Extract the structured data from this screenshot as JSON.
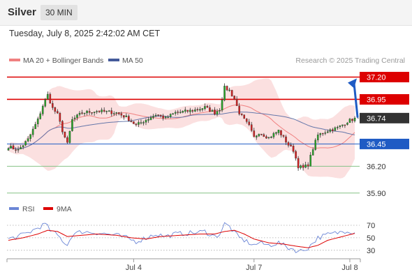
{
  "header": {
    "instrument": "Silver",
    "timeframe": "30 MIN"
  },
  "datetime": "Tuesday, July 8, 2025 2:42:02 AM CET",
  "legend": {
    "ma20": "MA 20 + Bollinger Bands",
    "ma50": "MA 50"
  },
  "copyright": "Research © 2025 Trading Central",
  "rsi_legend": {
    "rsi": "RSI",
    "ma": "9MA"
  },
  "colors": {
    "resistance": "#dd0000",
    "support": "#1f5bc4",
    "support_green": "#86c286",
    "candle_up": "#27a827",
    "candle_down": "#d62020",
    "bollinger_fill": "#fad6d6",
    "ma20": "#f08080",
    "ma50": "#6677aa",
    "arrow": "#1f5bc4",
    "price": "#333333"
  },
  "chart_data": {
    "type": "candlestick",
    "instrument": "Silver",
    "interval": "30 MIN",
    "ylim": [
      35.82,
      37.29
    ],
    "x_ticks": [
      "Jul 4",
      "Jul 7",
      "Jul 8"
    ],
    "levels": [
      {
        "value": 37.2,
        "label": "37.20",
        "kind": "resistance"
      },
      {
        "value": 36.95,
        "label": "36.95",
        "kind": "resistance"
      },
      {
        "value": 36.74,
        "label": "36.74",
        "kind": "last"
      },
      {
        "value": 36.45,
        "label": "36.45",
        "kind": "support"
      },
      {
        "value": 36.2,
        "label": "36.20",
        "kind": "support-target"
      },
      {
        "value": 35.9,
        "label": "35.90",
        "kind": "support-target"
      }
    ],
    "forecast_arrow": {
      "from": 36.74,
      "to": 37.2
    },
    "path_keys": [
      [
        0,
        36.42
      ],
      [
        4,
        36.38
      ],
      [
        8,
        36.5
      ],
      [
        12,
        36.72
      ],
      [
        14,
        36.88
      ],
      [
        16,
        37.0
      ],
      [
        18,
        36.85
      ],
      [
        20,
        36.78
      ],
      [
        22,
        36.6
      ],
      [
        24,
        36.45
      ],
      [
        26,
        36.72
      ],
      [
        30,
        36.8
      ],
      [
        36,
        36.82
      ],
      [
        44,
        36.8
      ],
      [
        48,
        36.75
      ],
      [
        52,
        36.66
      ],
      [
        56,
        36.72
      ],
      [
        60,
        36.78
      ],
      [
        64,
        36.74
      ],
      [
        68,
        36.8
      ],
      [
        76,
        36.83
      ],
      [
        80,
        36.86
      ],
      [
        84,
        36.8
      ],
      [
        86,
        36.84
      ],
      [
        88,
        37.08
      ],
      [
        90,
        37.05
      ],
      [
        92,
        36.95
      ],
      [
        94,
        36.8
      ],
      [
        96,
        36.72
      ],
      [
        98,
        36.65
      ],
      [
        100,
        36.52
      ],
      [
        102,
        36.58
      ],
      [
        106,
        36.52
      ],
      [
        110,
        36.6
      ],
      [
        114,
        36.44
      ],
      [
        116,
        36.38
      ],
      [
        118,
        36.2
      ],
      [
        120,
        36.18
      ],
      [
        122,
        36.22
      ],
      [
        124,
        36.4
      ],
      [
        126,
        36.55
      ],
      [
        130,
        36.6
      ],
      [
        134,
        36.63
      ],
      [
        138,
        36.7
      ],
      [
        141,
        36.74
      ]
    ],
    "rsi": {
      "levels": [
        70,
        50,
        30
      ],
      "ylim": [
        22,
        80
      ],
      "rsi_keys": [
        [
          0,
          48
        ],
        [
          4,
          52
        ],
        [
          8,
          58
        ],
        [
          10,
          62
        ],
        [
          13,
          68
        ],
        [
          15,
          72
        ],
        [
          17,
          62
        ],
        [
          20,
          54
        ],
        [
          22,
          46
        ],
        [
          24,
          38
        ],
        [
          26,
          55
        ],
        [
          30,
          60
        ],
        [
          36,
          58
        ],
        [
          44,
          54
        ],
        [
          48,
          50
        ],
        [
          52,
          44
        ],
        [
          56,
          50
        ],
        [
          60,
          56
        ],
        [
          64,
          52
        ],
        [
          68,
          56
        ],
        [
          76,
          58
        ],
        [
          80,
          60
        ],
        [
          84,
          52
        ],
        [
          86,
          56
        ],
        [
          88,
          72
        ],
        [
          90,
          68
        ],
        [
          92,
          58
        ],
        [
          94,
          50
        ],
        [
          96,
          46
        ],
        [
          98,
          42
        ],
        [
          100,
          38
        ],
        [
          102,
          42
        ],
        [
          106,
          38
        ],
        [
          110,
          42
        ],
        [
          114,
          34
        ],
        [
          116,
          32
        ],
        [
          118,
          28
        ],
        [
          120,
          30
        ],
        [
          122,
          34
        ],
        [
          124,
          42
        ],
        [
          126,
          50
        ],
        [
          130,
          55
        ],
        [
          134,
          58
        ],
        [
          138,
          62
        ],
        [
          141,
          58
        ]
      ],
      "ma_keys": [
        [
          0,
          46
        ],
        [
          6,
          50
        ],
        [
          12,
          56
        ],
        [
          16,
          62
        ],
        [
          20,
          60
        ],
        [
          24,
          52
        ],
        [
          30,
          54
        ],
        [
          36,
          56
        ],
        [
          44,
          54
        ],
        [
          50,
          50
        ],
        [
          56,
          48
        ],
        [
          62,
          52
        ],
        [
          70,
          54
        ],
        [
          78,
          56
        ],
        [
          84,
          56
        ],
        [
          88,
          60
        ],
        [
          92,
          62
        ],
        [
          96,
          56
        ],
        [
          100,
          48
        ],
        [
          106,
          42
        ],
        [
          112,
          40
        ],
        [
          118,
          36
        ],
        [
          122,
          34
        ],
        [
          126,
          38
        ],
        [
          130,
          46
        ],
        [
          136,
          52
        ],
        [
          141,
          57
        ]
      ]
    }
  }
}
